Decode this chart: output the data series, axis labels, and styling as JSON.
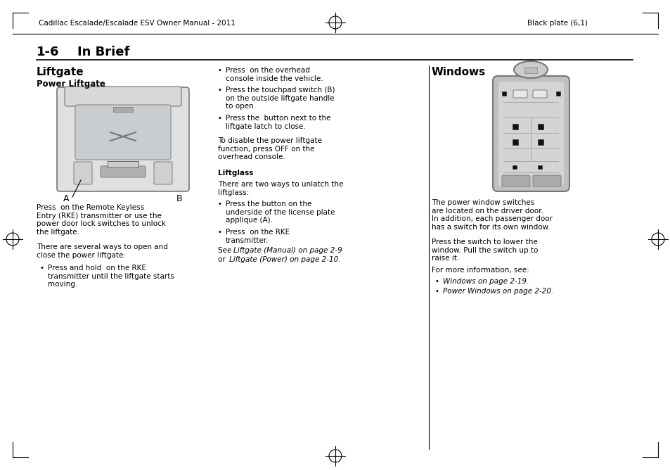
{
  "page_header_left": "Cadillac Escalade/Escalade ESV Owner Manual - 2011",
  "page_header_right": "Black plate (6,1)",
  "section_number": "1-6",
  "section_title": "In Brief",
  "col1_title": "Liftgate",
  "col1_subtitle": "Power Liftgate",
  "col1_text1": "Press  on the Remote Keyless\nEntry (RKE) transmitter or use the\npower door lock switches to unlock\nthe liftgate.",
  "col1_text2": "There are several ways to open and\nclose the power liftgate:",
  "col1_bullet1": "Press and hold  on the RKE\ntransmitter until the liftgate starts\nmoving.",
  "col2_bullet1": "Press  on the overhead\nconsole inside the vehicle.",
  "col2_bullet2": "Press the touchpad switch (B)\non the outside liftgate handle\nto open.",
  "col2_bullet3": "Press the  button next to the\nliftgate latch to close.",
  "col2_text1": "To disable the power liftgate\nfunction, press OFF on the\noverhead console.",
  "col2_subtitle": "Liftglass",
  "col2_text2": "There are two ways to unlatch the\nliftglass:",
  "col2_bullet4": "Press the button on the\nunderside of the license plate\napplique (A).",
  "col2_bullet5": "Press  on the RKE\ntransmitter.",
  "col3_title": "Windows",
  "col3_text1": "The power window switches\nare located on the driver door.\nIn addition, each passenger door\nhas a switch for its own window.",
  "col3_text2": "Press the switch to lower the\nwindow. Pull the switch up to\nraise it.",
  "col3_text3": "For more information, see:",
  "col3_bullet1": "Windows on page 2-19.",
  "col3_bullet2": "Power Windows on page 2-20.",
  "bg_color": "#ffffff",
  "text_color": "#000000"
}
